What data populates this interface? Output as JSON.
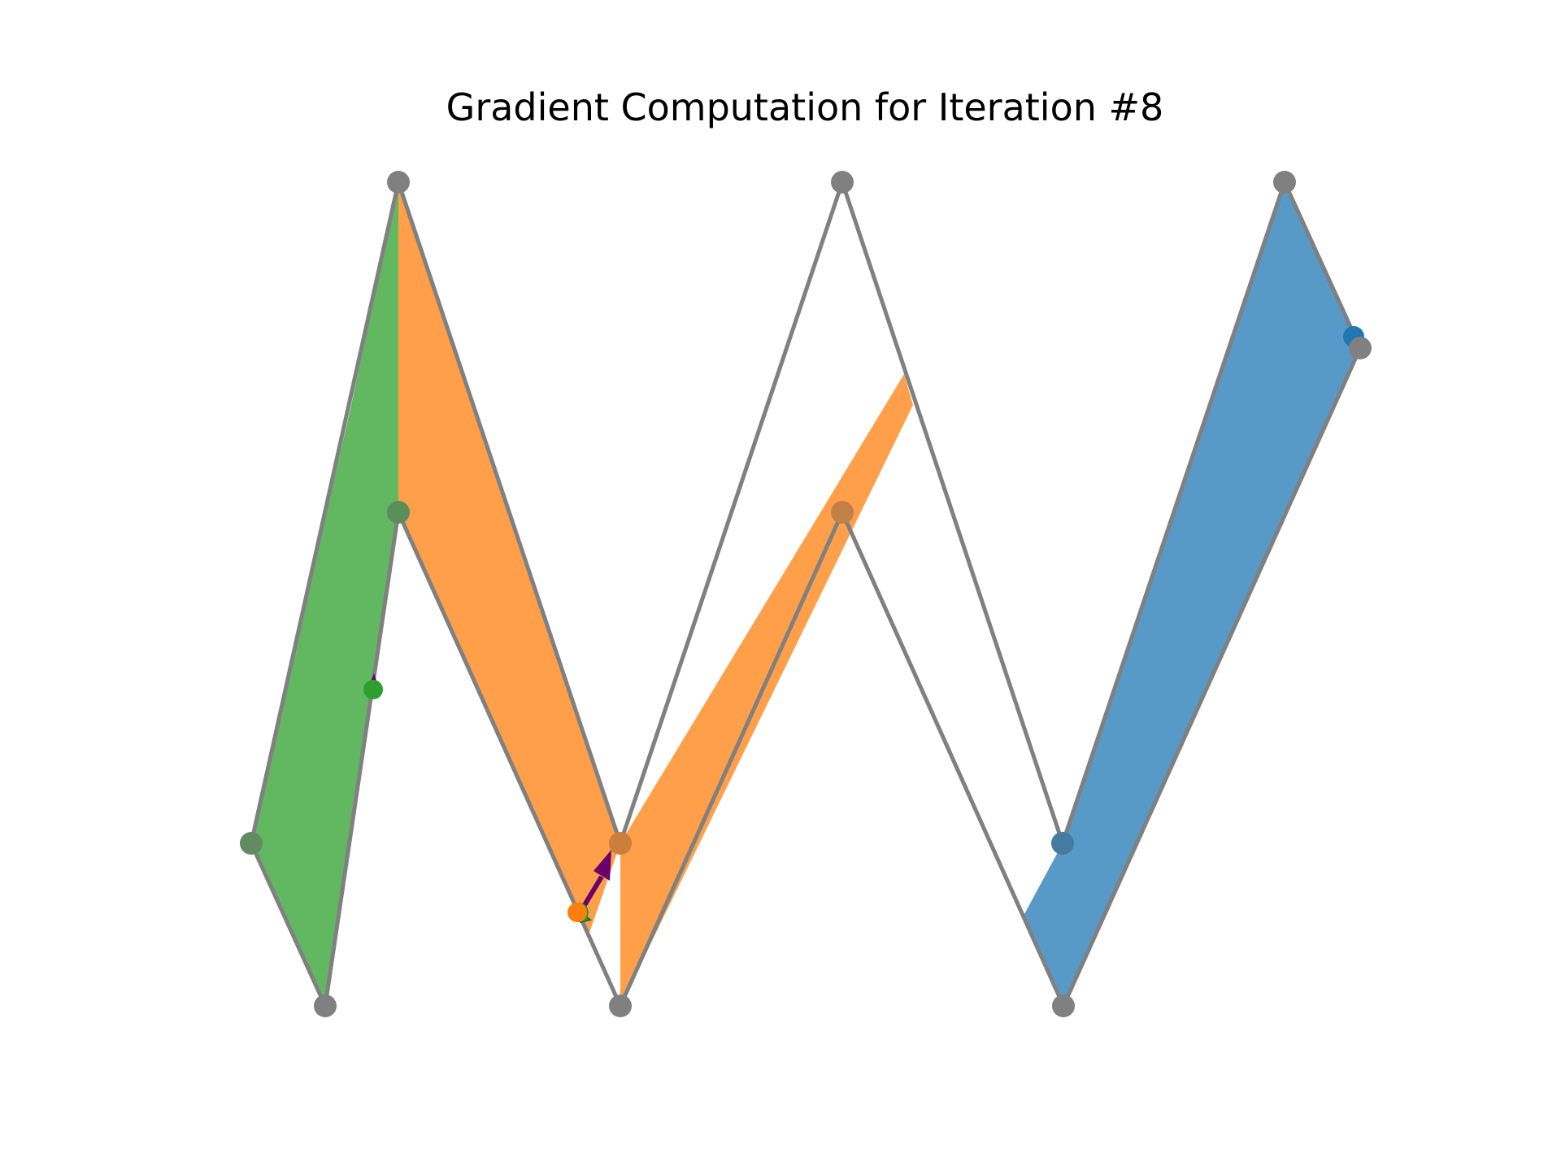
{
  "title": "Gradient Computation for Iteration #8",
  "colors": {
    "blue": "#1f77b4",
    "orange": "#ff7f0e",
    "green": "#2ca02c",
    "gray": "#808080",
    "arrow": "#6a006a"
  }
}
